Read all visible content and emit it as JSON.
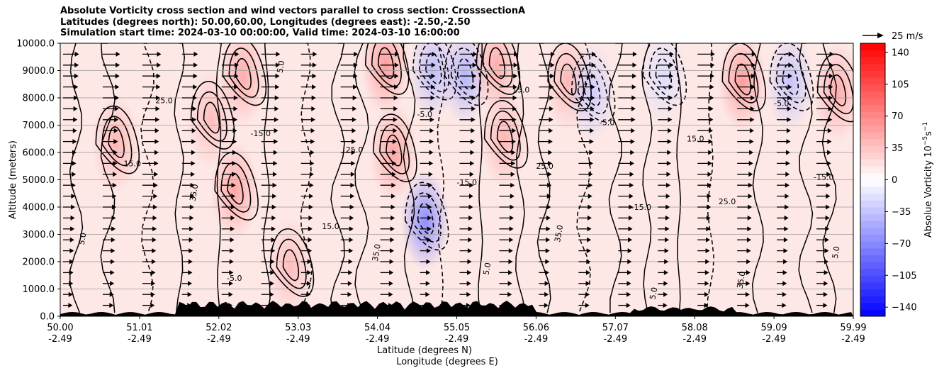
{
  "title_lines": [
    "Absolute Vorticity cross section and wind vectors parallel to cross section: CrosssectionA",
    "Latitudes (degrees north): 50.00,60.00, Longitudes (degrees east): -2.50,-2.50",
    "Simulation start time: 2024-03-10 00:00:00, Valid time: 2024-03-10 16:00:00"
  ],
  "chart_data": {
    "type": "heatmap",
    "title": "Absolute Vorticity cross section and wind vectors parallel to cross section: CrosssectionA",
    "ylabel": "Altitude (meters)",
    "xlabel_lines": [
      "Latitude (degrees N)",
      "Longitude (degrees E)"
    ],
    "ylim": [
      0,
      10000
    ],
    "yticks": [
      "0.0",
      "1000.0",
      "2000.0",
      "3000.0",
      "4000.0",
      "5000.0",
      "6000.0",
      "7000.0",
      "8000.0",
      "9000.0",
      "10000.0"
    ],
    "xticks": [
      {
        "lat": "50.00",
        "lon": "-2.49"
      },
      {
        "lat": "51.01",
        "lon": "-2.49"
      },
      {
        "lat": "52.02",
        "lon": "-2.49"
      },
      {
        "lat": "53.03",
        "lon": "-2.49"
      },
      {
        "lat": "54.04",
        "lon": "-2.49"
      },
      {
        "lat": "55.05",
        "lon": "-2.49"
      },
      {
        "lat": "56.06",
        "lon": "-2.49"
      },
      {
        "lat": "57.07",
        "lon": "-2.49"
      },
      {
        "lat": "58.08",
        "lon": "-2.49"
      },
      {
        "lat": "59.09",
        "lon": "-2.49"
      },
      {
        "lat": "59.99",
        "lon": "-2.49"
      }
    ],
    "grid": "horizontal",
    "colorbar": {
      "label": "Absolue Vorticity 10",
      "label_unit_exp": "−5",
      "label_unit2": "s",
      "label_unit2_exp": "−1",
      "ticks": [
        "140",
        "105",
        "70",
        "35",
        "0",
        "−35",
        "−70",
        "−105",
        "−140"
      ],
      "range": [
        -150,
        150
      ],
      "colormap": "bwr"
    },
    "quiver_key": {
      "label": "25 m/s"
    },
    "contour_labels": [
      "5.0",
      "15.0",
      "25.0",
      "35.0",
      "-5.0",
      "-15.0"
    ],
    "wind_rows_altitude_m": [
      9600,
      9200,
      8800,
      8400,
      8000,
      7600,
      7200,
      6800,
      6400,
      6000,
      5600,
      5200,
      4800,
      4400,
      4000,
      3600,
      3200,
      2800,
      2400,
      2000,
      1600,
      1200,
      800,
      400
    ],
    "vorticity_features": [
      {
        "lat_frac": 0.07,
        "alt": 6300,
        "value": 45
      },
      {
        "lat_frac": 0.19,
        "alt": 7200,
        "value": 40
      },
      {
        "lat_frac": 0.22,
        "alt": 4600,
        "value": 55
      },
      {
        "lat_frac": 0.23,
        "alt": 8800,
        "value": 50
      },
      {
        "lat_frac": 0.29,
        "alt": 1800,
        "value": 40
      },
      {
        "lat_frac": 0.41,
        "alt": 9200,
        "value": 60
      },
      {
        "lat_frac": 0.42,
        "alt": 6000,
        "value": 55
      },
      {
        "lat_frac": 0.46,
        "alt": 3500,
        "value": -70
      },
      {
        "lat_frac": 0.47,
        "alt": 9000,
        "value": -40
      },
      {
        "lat_frac": 0.51,
        "alt": 8800,
        "value": -45
      },
      {
        "lat_frac": 0.55,
        "alt": 9200,
        "value": 50
      },
      {
        "lat_frac": 0.56,
        "alt": 6500,
        "value": 45
      },
      {
        "lat_frac": 0.64,
        "alt": 8600,
        "value": 45
      },
      {
        "lat_frac": 0.67,
        "alt": 8200,
        "value": -30
      },
      {
        "lat_frac": 0.76,
        "alt": 8800,
        "value": -20
      },
      {
        "lat_frac": 0.86,
        "alt": 8600,
        "value": 60
      },
      {
        "lat_frac": 0.92,
        "alt": 8600,
        "value": -35
      },
      {
        "lat_frac": 0.98,
        "alt": 8200,
        "value": 50
      }
    ]
  }
}
